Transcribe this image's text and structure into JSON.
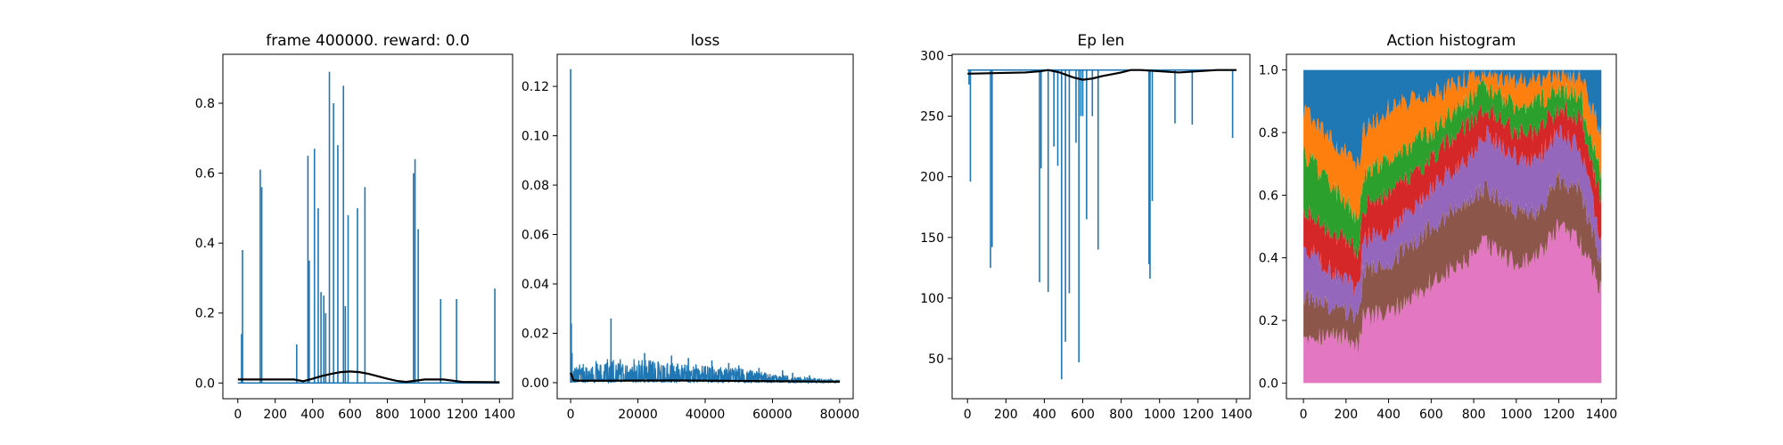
{
  "colors": {
    "series": "#1f77b4",
    "smooth": "#000000",
    "stack": [
      "#e377c2",
      "#8c564b",
      "#9467bd",
      "#d62728",
      "#2ca02c",
      "#ff7f0e",
      "#1f77b4"
    ]
  },
  "chart_data": [
    {
      "type": "line",
      "title": "frame 400000. reward: 0.0",
      "xlim": [
        -80,
        1470
      ],
      "ylim": [
        -0.045,
        0.94
      ],
      "xticks": [
        0,
        200,
        400,
        600,
        800,
        1000,
        1200,
        1400
      ],
      "yticks": [
        0.0,
        0.2,
        0.4,
        0.6,
        0.8
      ],
      "ytick_labels": [
        "0.0",
        "0.2",
        "0.4",
        "0.6",
        "0.8"
      ],
      "grid": false,
      "series": [
        {
          "role": "raw",
          "spikes": [
            [
              20,
              0.14
            ],
            [
              25,
              0.38
            ],
            [
              120,
              0.61
            ],
            [
              128,
              0.56
            ],
            [
              315,
              0.11
            ],
            [
              375,
              0.65
            ],
            [
              382,
              0.35
            ],
            [
              410,
              0.67
            ],
            [
              430,
              0.5
            ],
            [
              445,
              0.26
            ],
            [
              460,
              0.25
            ],
            [
              470,
              0.2
            ],
            [
              490,
              0.89
            ],
            [
              512,
              0.8
            ],
            [
              535,
              0.68
            ],
            [
              565,
              0.85
            ],
            [
              575,
              0.22
            ],
            [
              590,
              0.48
            ],
            [
              640,
              0.5
            ],
            [
              680,
              0.56
            ],
            [
              940,
              0.6
            ],
            [
              948,
              0.64
            ],
            [
              965,
              0.44
            ],
            [
              1085,
              0.24
            ],
            [
              1170,
              0.24
            ],
            [
              1375,
              0.27
            ]
          ]
        },
        {
          "role": "smoothed",
          "x": [
            0,
            300,
            350,
            400,
            450,
            500,
            550,
            600,
            650,
            700,
            750,
            800,
            850,
            900,
            1000,
            1100,
            1200,
            1400
          ],
          "y": [
            0.01,
            0.01,
            0.005,
            0.012,
            0.02,
            0.026,
            0.031,
            0.033,
            0.031,
            0.026,
            0.019,
            0.012,
            0.006,
            0.003,
            0.01,
            0.01,
            0.003,
            0.002
          ]
        }
      ]
    },
    {
      "type": "line",
      "title": "loss",
      "xlim": [
        -4000,
        84000
      ],
      "ylim": [
        -0.0065,
        0.133
      ],
      "xticks": [
        0,
        20000,
        40000,
        60000,
        80000
      ],
      "yticks": [
        0.0,
        0.02,
        0.04,
        0.06,
        0.08,
        0.1,
        0.12
      ],
      "ytick_labels": [
        "0.00",
        "0.02",
        "0.04",
        "0.06",
        "0.08",
        "0.10",
        "0.12"
      ],
      "grid": false,
      "series": [
        {
          "role": "raw",
          "spikes": [
            [
              0,
              0.127
            ],
            [
              200,
              0.024
            ],
            [
              400,
              0.012
            ],
            [
              12000,
              0.026
            ],
            [
              22000,
              0.012
            ],
            [
              30000,
              0.011
            ],
            [
              35000,
              0.01
            ],
            [
              42000,
              0.009
            ],
            [
              47000,
              0.008
            ],
            [
              50000,
              0.007
            ],
            [
              56000,
              0.006
            ],
            [
              63000,
              0.005
            ],
            [
              66000,
              0.004
            ],
            [
              71000,
              0.003
            ]
          ],
          "envelope": [
            [
              0,
              0.004
            ],
            [
              2000,
              0.006
            ],
            [
              10000,
              0.008
            ],
            [
              20000,
              0.008
            ],
            [
              30000,
              0.007
            ],
            [
              40000,
              0.006
            ],
            [
              50000,
              0.005
            ],
            [
              60000,
              0.003
            ],
            [
              70000,
              0.002
            ],
            [
              80000,
              0.001
            ]
          ]
        },
        {
          "role": "smoothed",
          "x": [
            0,
            300,
            800,
            2000,
            10000,
            30000,
            50000,
            70000,
            80000
          ],
          "y": [
            0.004,
            0.003,
            0.001,
            0.0008,
            0.0008,
            0.0009,
            0.0007,
            0.0005,
            0.0004
          ]
        }
      ]
    },
    {
      "type": "line",
      "title": "Ep len",
      "xlim": [
        -80,
        1470
      ],
      "ylim": [
        17,
        301
      ],
      "xticks": [
        0,
        200,
        400,
        600,
        800,
        1000,
        1200,
        1400
      ],
      "yticks": [
        50,
        100,
        150,
        200,
        250,
        300
      ],
      "ytick_labels": [
        "50",
        "100",
        "150",
        "200",
        "250",
        "300"
      ],
      "grid": false,
      "series": [
        {
          "role": "raw",
          "baseline": 288,
          "dips": [
            [
              8,
              276
            ],
            [
              15,
              196
            ],
            [
              120,
              125
            ],
            [
              128,
              142
            ],
            [
              375,
              113
            ],
            [
              383,
              207
            ],
            [
              420,
              105
            ],
            [
              450,
              225
            ],
            [
              470,
              209
            ],
            [
              490,
              33
            ],
            [
              510,
              64
            ],
            [
              530,
              104
            ],
            [
              565,
              228
            ],
            [
              580,
              47
            ],
            [
              590,
              250
            ],
            [
              600,
              250
            ],
            [
              620,
              165
            ],
            [
              650,
              250
            ],
            [
              680,
              140
            ],
            [
              945,
              128
            ],
            [
              950,
              116
            ],
            [
              962,
              180
            ],
            [
              1080,
              244
            ],
            [
              1170,
              243
            ],
            [
              1380,
              232
            ]
          ]
        },
        {
          "role": "smoothed",
          "x": [
            0,
            300,
            380,
            420,
            480,
            550,
            600,
            650,
            700,
            800,
            850,
            900,
            1000,
            1100,
            1200,
            1300,
            1400
          ],
          "y": [
            285,
            286,
            287,
            288,
            286,
            282,
            280,
            281,
            283,
            286,
            288,
            288,
            287,
            286,
            287,
            288,
            288
          ]
        }
      ]
    },
    {
      "type": "area",
      "title": "Action histogram",
      "xlim": [
        -80,
        1470
      ],
      "ylim": [
        -0.05,
        1.05
      ],
      "xticks": [
        0,
        200,
        400,
        600,
        800,
        1000,
        1200,
        1400
      ],
      "yticks": [
        0.0,
        0.2,
        0.4,
        0.6,
        0.8,
        1.0
      ],
      "ytick_labels": [
        "0.0",
        "0.2",
        "0.4",
        "0.6",
        "0.8",
        "1.0"
      ],
      "grid": false,
      "x": [
        0,
        100,
        200,
        260,
        280,
        400,
        600,
        800,
        850,
        1000,
        1100,
        1200,
        1300,
        1400
      ],
      "boundaries": [
        [
          0.16,
          0.15,
          0.15,
          0.12,
          0.21,
          0.22,
          0.32,
          0.4,
          0.45,
          0.38,
          0.4,
          0.5,
          0.45,
          0.3
        ],
        [
          0.28,
          0.25,
          0.23,
          0.21,
          0.36,
          0.38,
          0.5,
          0.6,
          0.62,
          0.55,
          0.55,
          0.65,
          0.62,
          0.38
        ],
        [
          0.44,
          0.38,
          0.32,
          0.3,
          0.46,
          0.48,
          0.62,
          0.74,
          0.8,
          0.72,
          0.72,
          0.8,
          0.75,
          0.45
        ],
        [
          0.56,
          0.5,
          0.45,
          0.42,
          0.56,
          0.6,
          0.72,
          0.84,
          0.88,
          0.8,
          0.8,
          0.88,
          0.85,
          0.58
        ],
        [
          0.74,
          0.65,
          0.58,
          0.52,
          0.66,
          0.72,
          0.8,
          0.92,
          0.95,
          0.88,
          0.9,
          0.94,
          0.92,
          0.65
        ],
        [
          0.87,
          0.8,
          0.73,
          0.7,
          0.8,
          0.88,
          0.92,
          0.98,
          0.99,
          0.96,
          0.97,
          0.99,
          0.98,
          0.8
        ],
        [
          1.0,
          1.0,
          1.0,
          1.0,
          1.0,
          1.0,
          1.0,
          1.0,
          1.0,
          1.0,
          1.0,
          1.0,
          1.0,
          1.0
        ]
      ]
    }
  ]
}
